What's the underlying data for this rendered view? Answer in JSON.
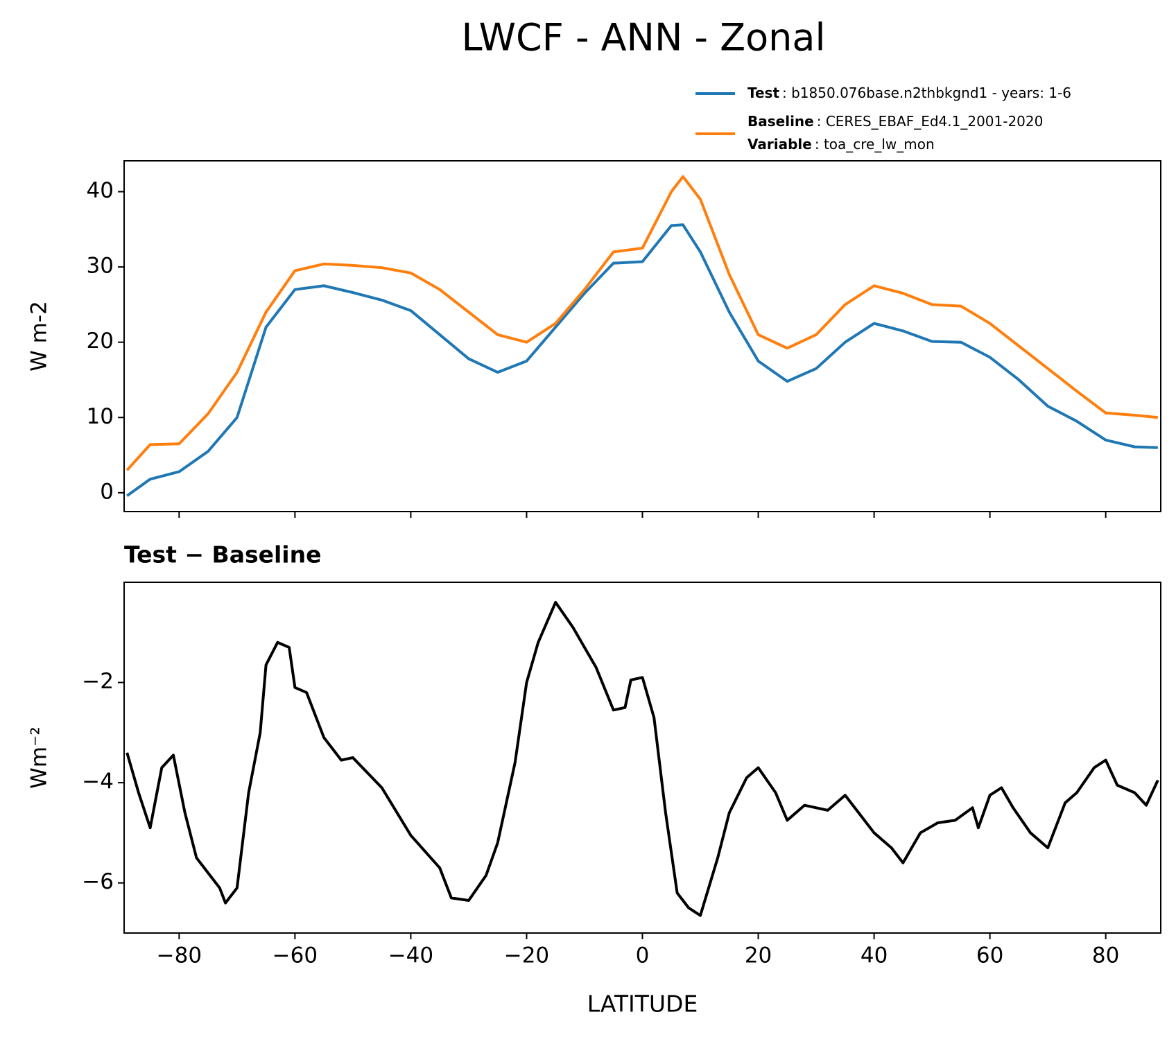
{
  "chart_data": [
    {
      "type": "line",
      "title": "LWCF - ANN - Zonal",
      "ylabel": "W m-2",
      "xlim": [
        -89.5,
        89.5
      ],
      "ylim": [
        -2.5,
        44.1
      ],
      "yticks": [
        0,
        10,
        20,
        30,
        40
      ],
      "x": [
        -89,
        -85,
        -80,
        -75,
        -70,
        -65,
        -60,
        -55,
        -50,
        -45,
        -40,
        -35,
        -30,
        -25,
        -20,
        -15,
        -10,
        -5,
        0,
        5,
        7,
        10,
        15,
        20,
        25,
        30,
        35,
        40,
        45,
        50,
        55,
        60,
        65,
        70,
        75,
        80,
        85,
        89
      ],
      "series": [
        {
          "name": "Test",
          "detail": ": b1850.076base.n2thbkgnd1 - years: 1-6",
          "color": "#1f77b4",
          "values": [
            -0.4,
            1.8,
            2.8,
            5.5,
            10,
            22,
            27,
            27.5,
            26.6,
            25.6,
            24.2,
            21,
            17.8,
            16,
            17.5,
            22,
            26.5,
            30.5,
            30.7,
            35.5,
            35.6,
            32,
            24,
            17.5,
            14.8,
            16.5,
            20,
            22.5,
            21.5,
            20.1,
            20,
            18,
            15,
            11.5,
            9.5,
            7,
            6.1,
            6
          ]
        },
        {
          "name": "Baseline",
          "detail": ": CERES_EBAF_Ed4.1_2001-2020",
          "color": "#ff7f0e",
          "values": [
            3,
            6.4,
            6.5,
            10.5,
            16,
            24,
            29.5,
            30.4,
            30.2,
            29.9,
            29.2,
            27,
            24,
            21,
            20,
            22.5,
            27,
            32,
            32.5,
            40,
            42,
            39,
            29,
            21,
            19.2,
            21,
            25,
            27.5,
            26.5,
            25,
            24.8,
            22.5,
            19.5,
            16.5,
            13.5,
            10.6,
            10.3,
            10
          ]
        }
      ],
      "legend_extra": {
        "name": "Variable",
        "detail": ": toa_cre_lw_mon"
      }
    },
    {
      "type": "line",
      "title": "Test − Baseline",
      "ylabel": "Wm⁻²",
      "xlabel": "LATITUDE",
      "xlim": [
        -89.5,
        89.5
      ],
      "ylim": [
        -7.0,
        0.0
      ],
      "yticks": [
        {
          "value": -6,
          "label": "−6"
        },
        {
          "value": -4,
          "label": "−4"
        },
        {
          "value": -2,
          "label": "−2"
        }
      ],
      "xticks": [
        {
          "value": -80,
          "label": "−80"
        },
        {
          "value": -60,
          "label": "−60"
        },
        {
          "value": -40,
          "label": "−40"
        },
        {
          "value": -20,
          "label": "−20"
        },
        0,
        20,
        40,
        60,
        80
      ],
      "x": [
        -89,
        -87,
        -85,
        -83,
        -81,
        -79,
        -77,
        -75,
        -73,
        -72,
        -70,
        -68,
        -66,
        -65,
        -63,
        -61,
        -60,
        -58,
        -55,
        -52,
        -50,
        -45,
        -40,
        -35,
        -33,
        -30,
        -27,
        -25,
        -22,
        -20,
        -18,
        -15,
        -12,
        -10,
        -8,
        -5,
        -3,
        -2,
        0,
        2,
        4,
        6,
        8,
        10,
        13,
        15,
        18,
        20,
        23,
        25,
        28,
        32,
        35,
        37,
        40,
        43,
        45,
        48,
        51,
        54,
        57,
        58,
        60,
        62,
        64,
        67,
        70,
        73,
        75,
        78,
        80,
        82,
        85,
        87,
        89
      ],
      "series": [
        {
          "color": "#000000",
          "values": [
            -3.4,
            -4.2,
            -4.9,
            -3.7,
            -3.45,
            -4.6,
            -5.5,
            -5.8,
            -6.1,
            -6.4,
            -6.1,
            -4.2,
            -3,
            -1.65,
            -1.2,
            -1.3,
            -2.1,
            -2.2,
            -3.1,
            -3.55,
            -3.5,
            -4.1,
            -5.05,
            -5.7,
            -6.3,
            -6.35,
            -5.85,
            -5.2,
            -3.6,
            -2.0,
            -1.2,
            -0.4,
            -0.9,
            -1.3,
            -1.7,
            -2.55,
            -2.5,
            -1.95,
            -1.9,
            -2.7,
            -4.6,
            -6.2,
            -6.5,
            -6.65,
            -5.5,
            -4.6,
            -3.9,
            -3.7,
            -4.2,
            -4.75,
            -4.45,
            -4.55,
            -4.25,
            -4.55,
            -5.0,
            -5.3,
            -5.6,
            -5.0,
            -4.8,
            -4.75,
            -4.5,
            -4.9,
            -4.25,
            -4.1,
            -4.5,
            -5.0,
            -5.3,
            -4.4,
            -4.2,
            -3.7,
            -3.55,
            -4.05,
            -4.2,
            -4.45,
            -3.95
          ]
        }
      ]
    }
  ]
}
